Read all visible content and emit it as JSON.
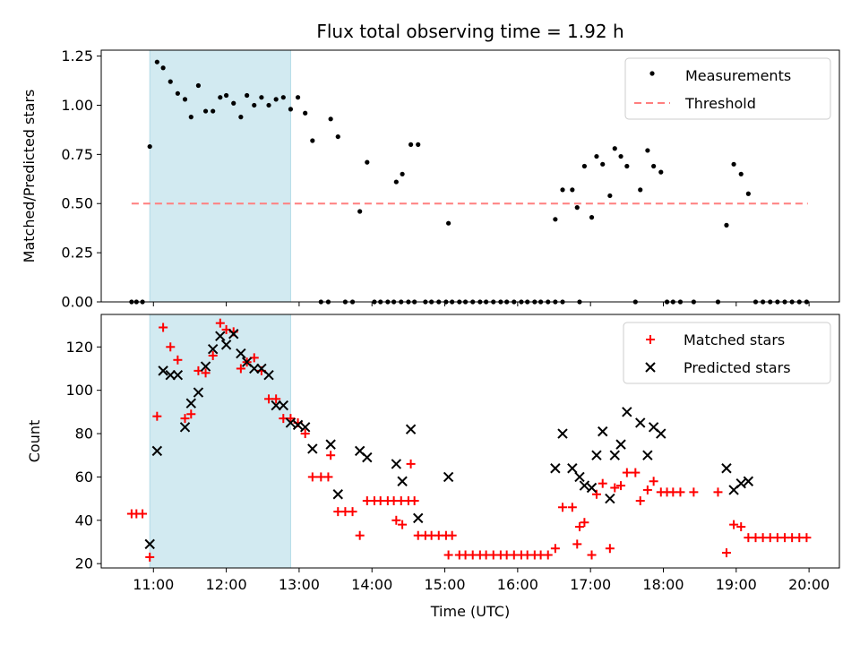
{
  "title": "Flux total observing time = 1.92 h",
  "colors": {
    "measurement": "#000000",
    "threshold": "#ff7f7f",
    "matched": "#ff0000",
    "predicted": "#000000",
    "shade": "#add8e6"
  },
  "chart_data": [
    {
      "type": "scatter",
      "ylabel": "Matched/Predicted stars",
      "ylim": [
        0,
        1.28
      ],
      "yticks": [
        0.0,
        0.25,
        0.5,
        0.75,
        1.0,
        1.25
      ],
      "ytick_labels": [
        "0.00",
        "0.25",
        "0.50",
        "0.75",
        "1.00",
        "1.25"
      ],
      "shaded_span": [
        "10:57",
        "12:53"
      ],
      "legend": {
        "position": "top-right",
        "entries": [
          "Measurements",
          "Threshold"
        ]
      },
      "threshold": {
        "name": "Threshold",
        "y": 0.5,
        "x_range": [
          "10:42",
          "19:59"
        ]
      },
      "series": [
        {
          "name": "Measurements",
          "points": [
            [
              "10:42",
              0
            ],
            [
              "10:46",
              0
            ],
            [
              "10:51",
              0
            ],
            [
              "10:57",
              0.79
            ],
            [
              "11:03",
              1.22
            ],
            [
              "11:08",
              1.19
            ],
            [
              "11:14",
              1.12
            ],
            [
              "11:20",
              1.06
            ],
            [
              "11:26",
              1.03
            ],
            [
              "11:31",
              0.94
            ],
            [
              "11:37",
              1.1
            ],
            [
              "11:43",
              0.97
            ],
            [
              "11:49",
              0.97
            ],
            [
              "11:55",
              1.04
            ],
            [
              "12:00",
              1.05
            ],
            [
              "12:06",
              1.01
            ],
            [
              "12:12",
              0.94
            ],
            [
              "12:17",
              1.05
            ],
            [
              "12:23",
              1.0
            ],
            [
              "12:29",
              1.04
            ],
            [
              "12:35",
              1.0
            ],
            [
              "12:41",
              1.03
            ],
            [
              "12:47",
              1.04
            ],
            [
              "12:53",
              0.98
            ],
            [
              "12:59",
              1.04
            ],
            [
              "13:05",
              0.96
            ],
            [
              "13:11",
              0.82
            ],
            [
              "13:18",
              0
            ],
            [
              "13:24",
              0
            ],
            [
              "13:26",
              0.93
            ],
            [
              "13:32",
              0.84
            ],
            [
              "13:38",
              0
            ],
            [
              "13:44",
              0
            ],
            [
              "13:50",
              0.46
            ],
            [
              "13:56",
              0.71
            ],
            [
              "14:02",
              0
            ],
            [
              "14:07",
              0
            ],
            [
              "14:13",
              0
            ],
            [
              "14:18",
              0
            ],
            [
              "14:24",
              0
            ],
            [
              "14:30",
              0
            ],
            [
              "14:35",
              0
            ],
            [
              "14:20",
              0.61
            ],
            [
              "14:25",
              0.65
            ],
            [
              "14:32",
              0.8
            ],
            [
              "14:38",
              0.8
            ],
            [
              "14:44",
              0
            ],
            [
              "14:49",
              0
            ],
            [
              "14:55",
              0
            ],
            [
              "15:01",
              0
            ],
            [
              "15:06",
              0
            ],
            [
              "15:12",
              0
            ],
            [
              "15:03",
              0.4
            ],
            [
              "15:17",
              0
            ],
            [
              "15:23",
              0
            ],
            [
              "15:29",
              0
            ],
            [
              "15:34",
              0
            ],
            [
              "15:40",
              0
            ],
            [
              "15:46",
              0
            ],
            [
              "15:51",
              0
            ],
            [
              "15:57",
              0
            ],
            [
              "16:03",
              0
            ],
            [
              "16:08",
              0
            ],
            [
              "16:14",
              0
            ],
            [
              "16:19",
              0
            ],
            [
              "16:25",
              0
            ],
            [
              "16:31",
              0
            ],
            [
              "16:37",
              0
            ],
            [
              "16:31",
              0.42
            ],
            [
              "16:37",
              0.57
            ],
            [
              "16:45",
              0.57
            ],
            [
              "16:51",
              0
            ],
            [
              "16:49",
              0.48
            ],
            [
              "16:55",
              0.69
            ],
            [
              "17:01",
              0.43
            ],
            [
              "17:05",
              0.74
            ],
            [
              "17:10",
              0.7
            ],
            [
              "17:16",
              0.54
            ],
            [
              "17:20",
              0.78
            ],
            [
              "17:25",
              0.74
            ],
            [
              "17:30",
              0.69
            ],
            [
              "17:37",
              0
            ],
            [
              "17:41",
              0.57
            ],
            [
              "17:47",
              0.77
            ],
            [
              "17:52",
              0.69
            ],
            [
              "17:58",
              0.66
            ],
            [
              "18:03",
              0
            ],
            [
              "18:08",
              0
            ],
            [
              "18:14",
              0
            ],
            [
              "18:25",
              0
            ],
            [
              "18:45",
              0
            ],
            [
              "18:52",
              0.39
            ],
            [
              "18:58",
              0.7
            ],
            [
              "19:04",
              0.65
            ],
            [
              "19:10",
              0.55
            ],
            [
              "19:16",
              0
            ],
            [
              "19:22",
              0
            ],
            [
              "19:28",
              0
            ],
            [
              "19:34",
              0
            ],
            [
              "19:40",
              0
            ],
            [
              "19:46",
              0
            ],
            [
              "19:52",
              0
            ],
            [
              "19:58",
              0
            ]
          ]
        }
      ]
    },
    {
      "type": "scatter",
      "xlabel": "Time (UTC)",
      "ylabel": "Count",
      "ylim": [
        18,
        135
      ],
      "yticks": [
        20,
        40,
        60,
        80,
        100,
        120
      ],
      "ytick_labels": [
        "20",
        "40",
        "60",
        "80",
        "100",
        "120"
      ],
      "xlim": [
        "10:17",
        "20:25"
      ],
      "xticks": [
        "11:00",
        "12:00",
        "13:00",
        "14:00",
        "15:00",
        "16:00",
        "17:00",
        "18:00",
        "19:00",
        "20:00"
      ],
      "shaded_span": [
        "10:57",
        "12:53"
      ],
      "legend": {
        "position": "top-right",
        "entries": [
          "Matched stars",
          "Predicted stars"
        ]
      },
      "series": [
        {
          "name": "Matched stars",
          "points": [
            [
              "10:42",
              43
            ],
            [
              "10:46",
              43
            ],
            [
              "10:51",
              43
            ],
            [
              "10:57",
              23
            ],
            [
              "11:03",
              88
            ],
            [
              "11:08",
              129
            ],
            [
              "11:14",
              120
            ],
            [
              "11:20",
              114
            ],
            [
              "11:26",
              87
            ],
            [
              "11:31",
              89
            ],
            [
              "11:37",
              109
            ],
            [
              "11:43",
              108
            ],
            [
              "11:49",
              116
            ],
            [
              "11:55",
              131
            ],
            [
              "12:00",
              128
            ],
            [
              "12:06",
              127
            ],
            [
              "12:12",
              110
            ],
            [
              "12:17",
              113
            ],
            [
              "12:23",
              115
            ],
            [
              "12:29",
              109
            ],
            [
              "12:35",
              96
            ],
            [
              "12:41",
              96
            ],
            [
              "12:47",
              87
            ],
            [
              "12:53",
              87
            ],
            [
              "12:59",
              85
            ],
            [
              "13:05",
              80
            ],
            [
              "13:11",
              60
            ],
            [
              "13:18",
              60
            ],
            [
              "13:24",
              60
            ],
            [
              "13:26",
              70
            ],
            [
              "13:32",
              44
            ],
            [
              "13:38",
              44
            ],
            [
              "13:44",
              44
            ],
            [
              "13:50",
              33
            ],
            [
              "13:56",
              49
            ],
            [
              "14:02",
              49
            ],
            [
              "14:07",
              49
            ],
            [
              "14:13",
              49
            ],
            [
              "14:18",
              49
            ],
            [
              "14:24",
              49
            ],
            [
              "14:30",
              49
            ],
            [
              "14:35",
              49
            ],
            [
              "14:20",
              40
            ],
            [
              "14:25",
              38
            ],
            [
              "14:32",
              66
            ],
            [
              "14:38",
              33
            ],
            [
              "14:44",
              33
            ],
            [
              "14:49",
              33
            ],
            [
              "14:55",
              33
            ],
            [
              "15:01",
              33
            ],
            [
              "15:06",
              33
            ],
            [
              "15:12",
              24
            ],
            [
              "15:03",
              24
            ],
            [
              "15:17",
              24
            ],
            [
              "15:23",
              24
            ],
            [
              "15:29",
              24
            ],
            [
              "15:34",
              24
            ],
            [
              "15:40",
              24
            ],
            [
              "15:46",
              24
            ],
            [
              "15:51",
              24
            ],
            [
              "15:57",
              24
            ],
            [
              "16:03",
              24
            ],
            [
              "16:08",
              24
            ],
            [
              "16:14",
              24
            ],
            [
              "16:19",
              24
            ],
            [
              "16:25",
              24
            ],
            [
              "16:31",
              27
            ],
            [
              "16:37",
              46
            ],
            [
              "16:45",
              46
            ],
            [
              "16:51",
              37
            ],
            [
              "16:49",
              29
            ],
            [
              "16:55",
              39
            ],
            [
              "17:01",
              24
            ],
            [
              "17:05",
              52
            ],
            [
              "17:10",
              57
            ],
            [
              "17:16",
              27
            ],
            [
              "17:20",
              55
            ],
            [
              "17:25",
              56
            ],
            [
              "17:30",
              62
            ],
            [
              "17:37",
              62
            ],
            [
              "17:41",
              49
            ],
            [
              "17:47",
              54
            ],
            [
              "17:52",
              58
            ],
            [
              "17:58",
              53
            ],
            [
              "18:03",
              53
            ],
            [
              "18:08",
              53
            ],
            [
              "18:14",
              53
            ],
            [
              "18:25",
              53
            ],
            [
              "18:45",
              53
            ],
            [
              "18:52",
              25
            ],
            [
              "18:58",
              38
            ],
            [
              "19:04",
              37
            ],
            [
              "19:10",
              32
            ],
            [
              "19:16",
              32
            ],
            [
              "19:22",
              32
            ],
            [
              "19:28",
              32
            ],
            [
              "19:34",
              32
            ],
            [
              "19:40",
              32
            ],
            [
              "19:46",
              32
            ],
            [
              "19:52",
              32
            ],
            [
              "19:58",
              32
            ]
          ]
        },
        {
          "name": "Predicted stars",
          "points": [
            [
              "10:57",
              29
            ],
            [
              "11:03",
              72
            ],
            [
              "11:08",
              109
            ],
            [
              "11:14",
              107
            ],
            [
              "11:20",
              107
            ],
            [
              "11:26",
              83
            ],
            [
              "11:31",
              94
            ],
            [
              "11:37",
              99
            ],
            [
              "11:43",
              111
            ],
            [
              "11:49",
              119
            ],
            [
              "11:55",
              125
            ],
            [
              "12:00",
              121
            ],
            [
              "12:06",
              126
            ],
            [
              "12:12",
              117
            ],
            [
              "12:17",
              113
            ],
            [
              "12:23",
              110
            ],
            [
              "12:29",
              110
            ],
            [
              "12:35",
              107
            ],
            [
              "12:41",
              93
            ],
            [
              "12:47",
              93
            ],
            [
              "12:53",
              85
            ],
            [
              "12:59",
              84
            ],
            [
              "13:05",
              83
            ],
            [
              "13:11",
              73
            ],
            [
              "13:26",
              75
            ],
            [
              "13:32",
              52
            ],
            [
              "13:50",
              72
            ],
            [
              "13:56",
              69
            ],
            [
              "14:20",
              66
            ],
            [
              "14:25",
              58
            ],
            [
              "14:32",
              82
            ],
            [
              "14:38",
              41
            ],
            [
              "15:03",
              60
            ],
            [
              "16:31",
              64
            ],
            [
              "16:37",
              80
            ],
            [
              "16:45",
              64
            ],
            [
              "16:51",
              60
            ],
            [
              "16:55",
              56
            ],
            [
              "17:01",
              55
            ],
            [
              "17:05",
              70
            ],
            [
              "17:10",
              81
            ],
            [
              "17:16",
              50
            ],
            [
              "17:20",
              70
            ],
            [
              "17:25",
              75
            ],
            [
              "17:30",
              90
            ],
            [
              "17:41",
              85
            ],
            [
              "17:47",
              70
            ],
            [
              "17:52",
              83
            ],
            [
              "17:58",
              80
            ],
            [
              "18:52",
              64
            ],
            [
              "18:58",
              54
            ],
            [
              "19:04",
              57
            ],
            [
              "19:10",
              58
            ]
          ]
        }
      ]
    }
  ]
}
